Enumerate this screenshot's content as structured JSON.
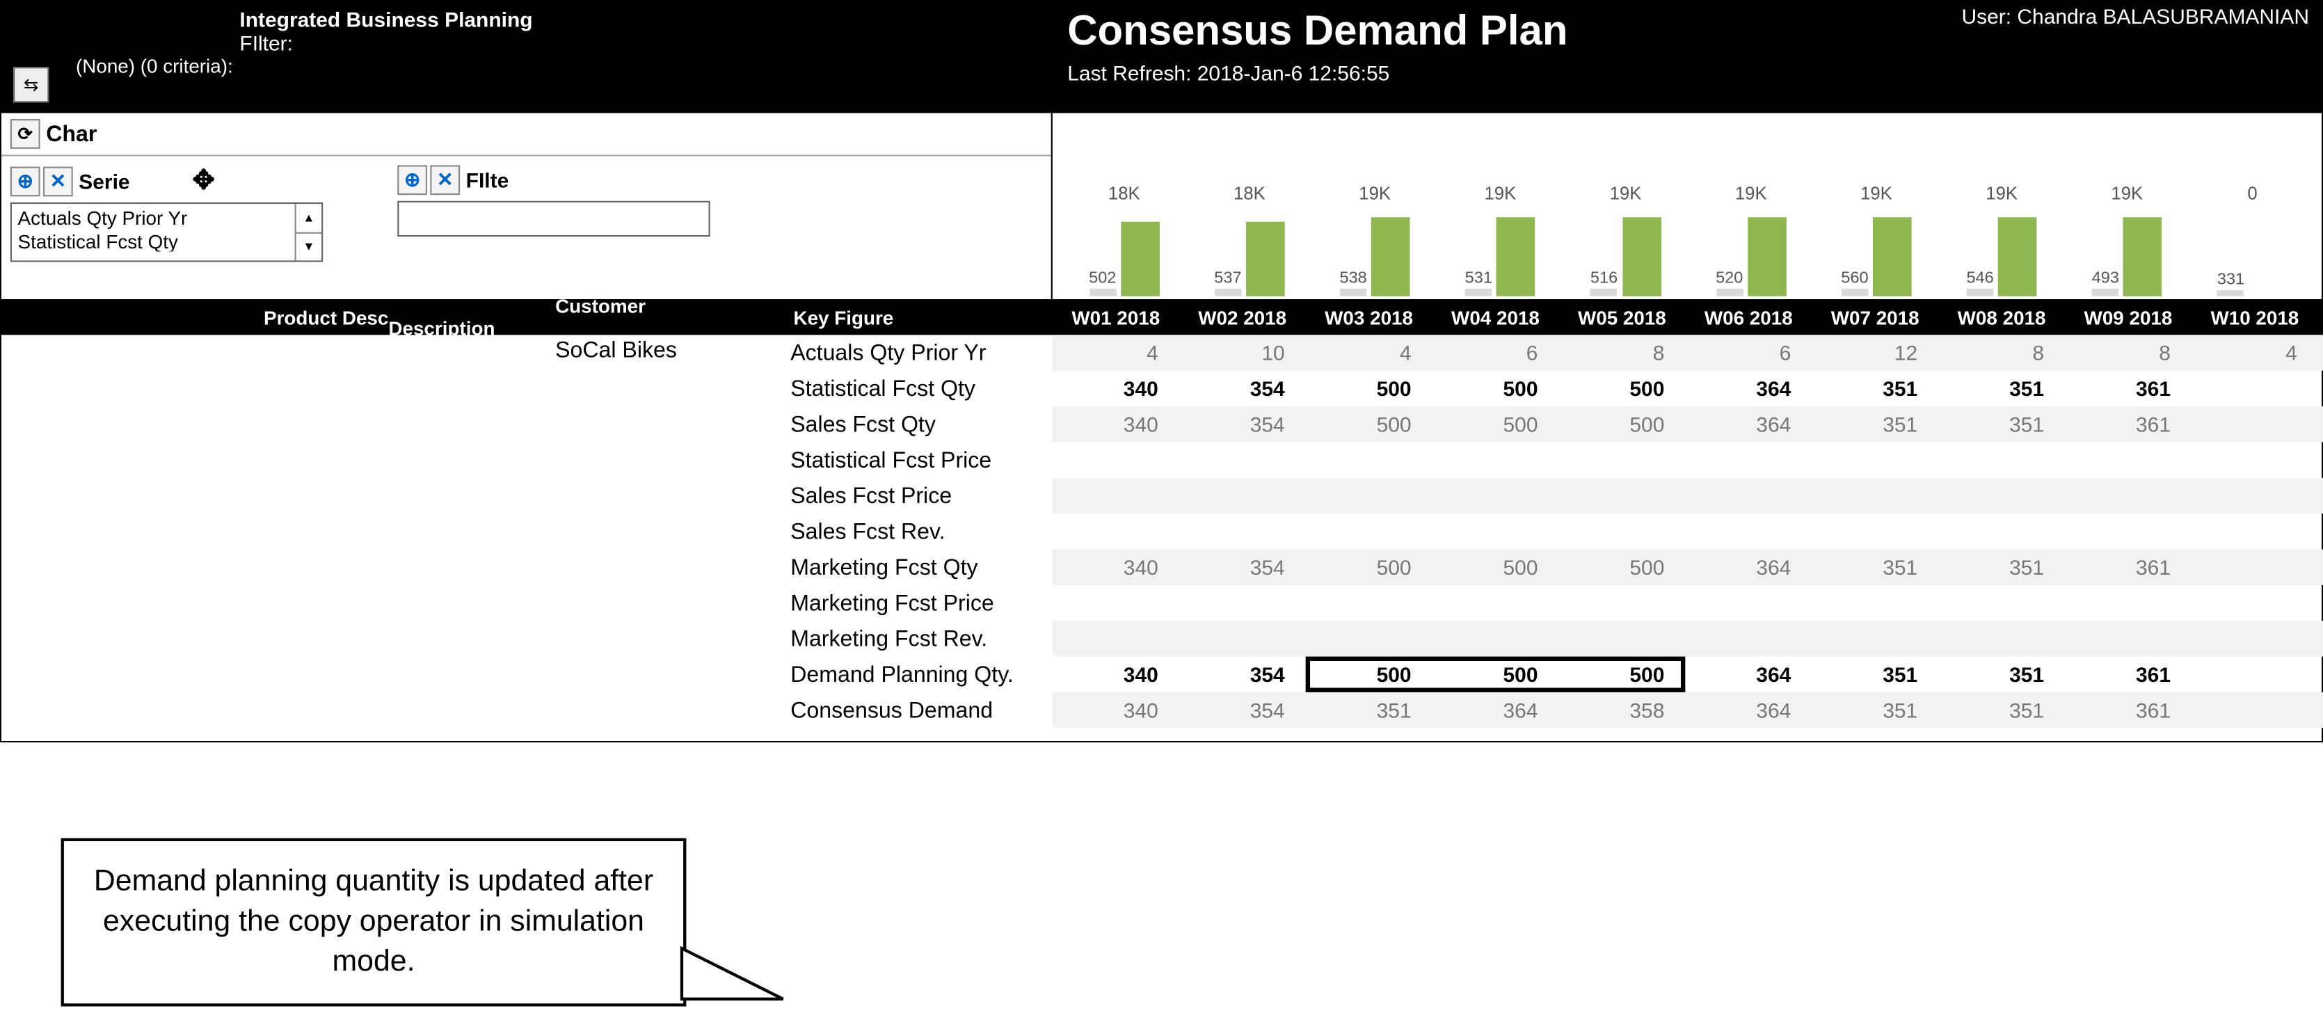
{
  "app": {
    "title": "Integrated Business Planning",
    "filter_label": "FIlter:",
    "filter_value": "(None) (0 criteria):",
    "plan_title": "Consensus Demand Plan",
    "user_prefix": "User: ",
    "user_name": "Chandra BALASUBRAMANIAN",
    "last_refresh_label": "Last Refresh: ",
    "last_refresh_value": "2018-Jan-6   12:56:55"
  },
  "controls": {
    "char_label": "Char",
    "serie_label": "Serie",
    "filter_label": "FIlte",
    "series_item1": "Actuals Qty  Prior Yr",
    "series_item2": "Statistical Fcst Qty",
    "filter_input_value": ""
  },
  "chart": {
    "bar_color": "#8fb74f",
    "small_bar_color": "#d9d9d9",
    "cols": [
      {
        "small_lbl": "502",
        "small_h": 5,
        "big_lbl": "18K",
        "big_h": 50
      },
      {
        "small_lbl": "537",
        "small_h": 5,
        "big_lbl": "18K",
        "big_h": 50
      },
      {
        "small_lbl": "538",
        "small_h": 5,
        "big_lbl": "19K",
        "big_h": 53
      },
      {
        "small_lbl": "531",
        "small_h": 5,
        "big_lbl": "19K",
        "big_h": 53
      },
      {
        "small_lbl": "516",
        "small_h": 5,
        "big_lbl": "19K",
        "big_h": 53
      },
      {
        "small_lbl": "520",
        "small_h": 5,
        "big_lbl": "19K",
        "big_h": 53
      },
      {
        "small_lbl": "560",
        "small_h": 5,
        "big_lbl": "19K",
        "big_h": 53
      },
      {
        "small_lbl": "546",
        "small_h": 5,
        "big_lbl": "19K",
        "big_h": 53
      },
      {
        "small_lbl": "493",
        "small_h": 5,
        "big_lbl": "19K",
        "big_h": 53
      },
      {
        "small_lbl": "331",
        "small_h": 4,
        "big_lbl": "0",
        "big_h": 0
      }
    ]
  },
  "headers": {
    "product_desc": "Product Desc",
    "customer_desc": "Customer Description",
    "key_figure": "Key Figure",
    "weeks": [
      "W01 2018",
      "W02 2018",
      "W03 2018",
      "W04 2018",
      "W05 2018",
      "W06 2018",
      "W07 2018",
      "W08 2018",
      "W09 2018",
      "W10 2018"
    ]
  },
  "grid": {
    "customer": "SoCal Bikes",
    "key_figures": [
      "Actuals Qty  Prior Yr",
      "Statistical Fcst Qty",
      "Sales Fcst Qty",
      "Statistical Fcst Price",
      "Sales Fcst Price",
      "Sales Fcst Rev.",
      "Marketing Fcst Qty",
      "Marketing Fcst Price",
      "Marketing Fcst Rev.",
      "Demand Planning Qty.",
      "Consensus Demand"
    ],
    "rows": [
      {
        "style": "grey",
        "alt": true,
        "cells": [
          "4",
          "10",
          "4",
          "6",
          "8",
          "6",
          "12",
          "8",
          "8",
          "4"
        ]
      },
      {
        "style": "bold",
        "alt": false,
        "cells": [
          "340",
          "354",
          "500",
          "500",
          "500",
          "364",
          "351",
          "351",
          "361",
          ""
        ]
      },
      {
        "style": "grey",
        "alt": true,
        "cells": [
          "340",
          "354",
          "500",
          "500",
          "500",
          "364",
          "351",
          "351",
          "361",
          ""
        ]
      },
      {
        "style": "grey",
        "alt": false,
        "cells": [
          "",
          "",
          "",
          "",
          "",
          "",
          "",
          "",
          "",
          ""
        ]
      },
      {
        "style": "grey",
        "alt": true,
        "cells": [
          "",
          "",
          "",
          "",
          "",
          "",
          "",
          "",
          "",
          ""
        ]
      },
      {
        "style": "grey",
        "alt": false,
        "cells": [
          "",
          "",
          "",
          "",
          "",
          "",
          "",
          "",
          "",
          ""
        ]
      },
      {
        "style": "grey",
        "alt": true,
        "cells": [
          "340",
          "354",
          "500",
          "500",
          "500",
          "364",
          "351",
          "351",
          "361",
          ""
        ]
      },
      {
        "style": "grey",
        "alt": false,
        "cells": [
          "",
          "",
          "",
          "",
          "",
          "",
          "",
          "",
          "",
          ""
        ]
      },
      {
        "style": "grey",
        "alt": true,
        "cells": [
          "",
          "",
          "",
          "",
          "",
          "",
          "",
          "",
          "",
          ""
        ]
      },
      {
        "style": "bold",
        "alt": false,
        "cells": [
          "340",
          "354",
          "500",
          "500",
          "500",
          "364",
          "351",
          "351",
          "361",
          ""
        ]
      },
      {
        "style": "grey",
        "alt": true,
        "cells": [
          "340",
          "354",
          "351",
          "364",
          "358",
          "364",
          "351",
          "351",
          "361",
          ""
        ]
      }
    ],
    "highlight": {
      "row": 9,
      "col_start": 2,
      "col_end": 4
    }
  },
  "callout": {
    "text": "Demand planning quantity is updated after executing the copy operator in simulation mode."
  }
}
